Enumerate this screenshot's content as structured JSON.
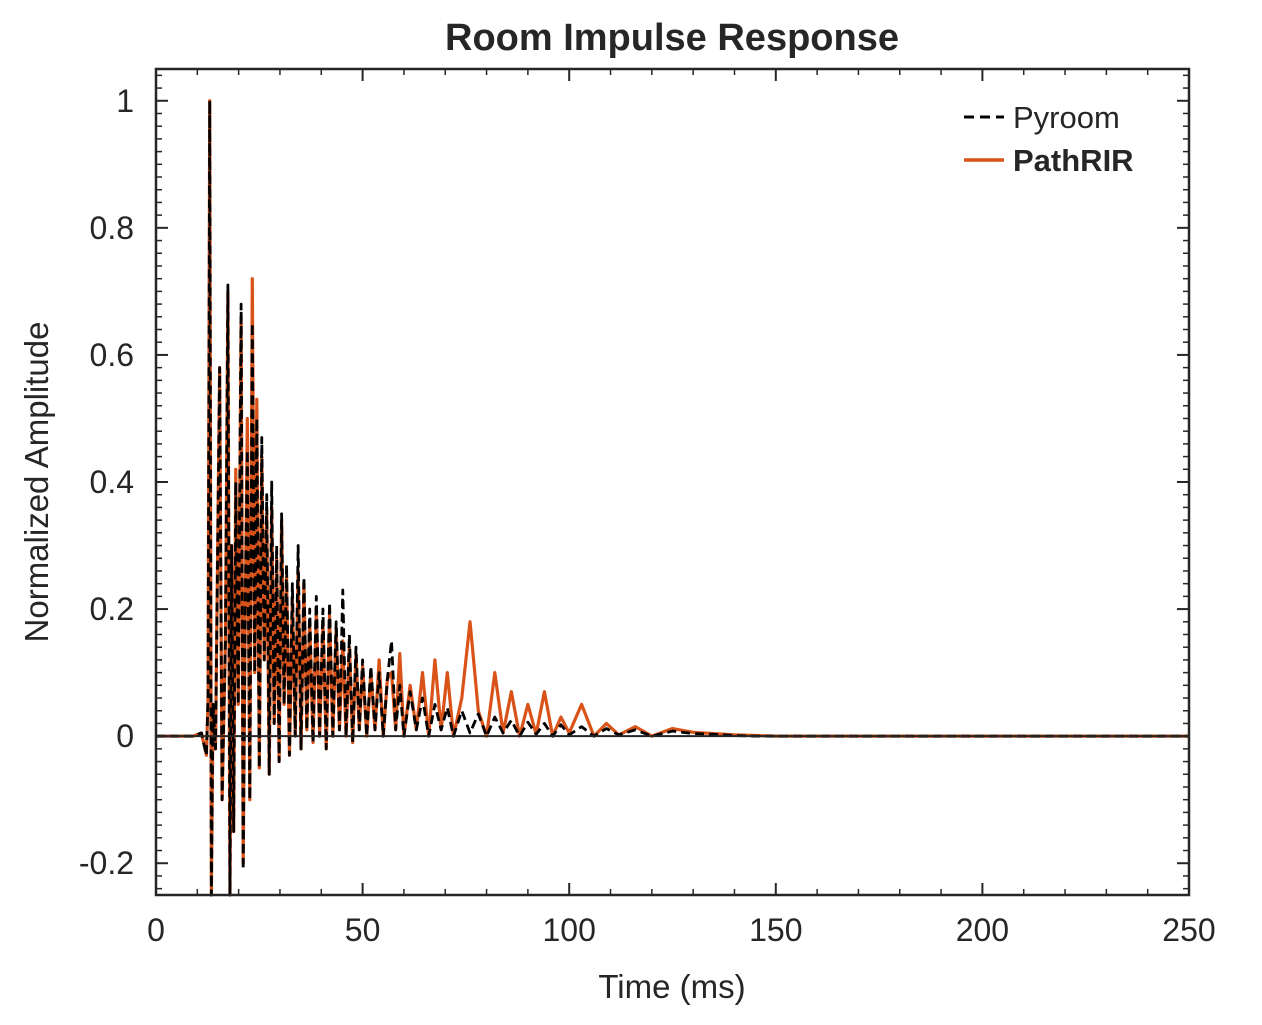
{
  "chart_data": {
    "type": "line",
    "title": "Room Impulse Response",
    "xlabel": "Time (ms)",
    "ylabel": "Normalized Amplitude",
    "xlim": [
      0,
      250
    ],
    "ylim": [
      -0.25,
      1.05
    ],
    "xticks": [
      0,
      50,
      100,
      150,
      200,
      250
    ],
    "xtick_labels": [
      "0",
      "50",
      "100",
      "150",
      "200",
      "250"
    ],
    "yticks": [
      -0.2,
      0,
      0.2,
      0.4,
      0.6,
      0.8,
      1
    ],
    "ytick_labels": [
      "-0.2",
      "0",
      "0.2",
      "0.4",
      "0.6",
      "0.8",
      "1"
    ],
    "grid": false,
    "legend_position": "top-right",
    "series": [
      {
        "name": "Pyroom",
        "color": "#000000",
        "style": "dashed",
        "x": [
          0,
          9,
          11,
          12.2,
          12.6,
          13.0,
          13.4,
          13.8,
          14.4,
          15.4,
          16.0,
          16.8,
          17.4,
          17.9,
          18.3,
          18.8,
          19.3,
          19.9,
          20.6,
          21.1,
          21.6,
          22.1,
          22.7,
          23.3,
          23.9,
          24.4,
          25.0,
          25.6,
          26.2,
          26.8,
          27.4,
          28.0,
          28.6,
          29.2,
          29.8,
          30.4,
          31.0,
          31.6,
          32.3,
          33.0,
          33.7,
          34.4,
          35.1,
          35.8,
          36.5,
          37.2,
          38.0,
          38.8,
          39.6,
          40.4,
          41.2,
          42.0,
          42.8,
          43.6,
          44.4,
          45.2,
          46.0,
          46.8,
          47.6,
          48.4,
          49.2,
          50.0,
          51.0,
          52.0,
          53.0,
          54.0,
          55.0,
          56.0,
          57.0,
          58.0,
          59.0,
          60.0,
          61.5,
          63.0,
          64.5,
          66.0,
          67.5,
          69.0,
          70.5,
          72.0,
          74.0,
          76.0,
          78.0,
          80.0,
          82.0,
          84.0,
          86.0,
          88.0,
          90.0,
          92.0,
          94.0,
          96.0,
          98.0,
          100.0,
          103.0,
          106.0,
          109.0,
          112.0,
          116.0,
          120.0,
          125.0,
          130.0,
          135.0,
          140.0,
          145.0,
          150.0,
          160.0,
          180.0,
          250.0
        ],
        "y": [
          0,
          0,
          0.005,
          -0.03,
          0.06,
          1.0,
          -0.25,
          0.05,
          -0.02,
          0.58,
          -0.1,
          0.15,
          0.71,
          -0.25,
          0.3,
          -0.15,
          0.4,
          0.05,
          0.68,
          -0.21,
          0.2,
          0.45,
          -0.1,
          0.65,
          0.1,
          0.5,
          -0.05,
          0.47,
          0.12,
          0.38,
          -0.06,
          0.4,
          0.02,
          0.3,
          -0.04,
          0.35,
          0.05,
          0.27,
          -0.03,
          0.24,
          0.0,
          0.3,
          -0.02,
          0.25,
          0.01,
          0.2,
          -0.01,
          0.22,
          0.0,
          0.2,
          -0.02,
          0.21,
          0.0,
          0.18,
          0.01,
          0.23,
          0.0,
          0.16,
          -0.01,
          0.14,
          0.01,
          0.12,
          0.0,
          0.11,
          0.01,
          0.1,
          0.0,
          0.09,
          0.15,
          0.01,
          0.08,
          0.0,
          0.07,
          0.01,
          0.06,
          0.0,
          0.05,
          0.01,
          0.045,
          0.0,
          0.04,
          0.005,
          0.035,
          0.0,
          0.03,
          0.005,
          0.025,
          0.0,
          0.022,
          0.003,
          0.02,
          0.0,
          0.018,
          0.002,
          0.015,
          0.0,
          0.012,
          0.002,
          0.01,
          0.0,
          0.008,
          0.004,
          0.003,
          0.001,
          0.0,
          0.0,
          0,
          0,
          0
        ]
      },
      {
        "name": "PathRIR",
        "color": "#D95319",
        "style": "solid",
        "x": [
          0,
          9,
          11,
          12.2,
          12.6,
          13.0,
          13.4,
          13.8,
          14.4,
          15.4,
          16.0,
          16.8,
          17.4,
          17.9,
          18.3,
          18.8,
          19.3,
          19.9,
          20.6,
          21.1,
          21.6,
          22.1,
          22.7,
          23.3,
          23.9,
          24.4,
          25.0,
          25.6,
          26.2,
          26.8,
          27.4,
          28.0,
          28.6,
          29.2,
          29.8,
          30.4,
          31.0,
          31.6,
          32.3,
          33.0,
          33.7,
          34.4,
          35.1,
          35.8,
          36.5,
          37.2,
          38.0,
          38.8,
          39.6,
          40.4,
          41.2,
          42.0,
          42.8,
          43.6,
          44.4,
          45.2,
          46.0,
          46.8,
          47.6,
          48.4,
          49.2,
          50.0,
          51.0,
          52.0,
          53.0,
          54.0,
          55.0,
          56.0,
          57.0,
          58.0,
          59.0,
          60.0,
          61.5,
          63.0,
          64.5,
          66.0,
          67.5,
          69.0,
          70.5,
          72.0,
          74.0,
          76.0,
          78.0,
          80.0,
          82.0,
          84.0,
          86.0,
          88.0,
          90.0,
          92.0,
          94.0,
          96.0,
          98.0,
          100.0,
          103.0,
          106.0,
          109.0,
          112.0,
          116.0,
          120.0,
          125.0,
          130.0,
          135.0,
          140.0,
          145.0,
          150.0,
          160.0,
          180.0,
          250.0
        ],
        "y": [
          0,
          0,
          0.005,
          -0.03,
          0.06,
          1.0,
          -0.25,
          0.05,
          -0.02,
          0.58,
          -0.1,
          0.15,
          0.7,
          -0.25,
          0.3,
          -0.15,
          0.42,
          0.05,
          0.66,
          -0.2,
          0.2,
          0.5,
          -0.1,
          0.72,
          0.1,
          0.53,
          -0.05,
          0.44,
          0.12,
          0.35,
          -0.06,
          0.36,
          0.02,
          0.28,
          -0.04,
          0.34,
          0.05,
          0.25,
          -0.03,
          0.22,
          0.0,
          0.26,
          -0.02,
          0.24,
          0.01,
          0.18,
          -0.01,
          0.2,
          0.0,
          0.18,
          -0.02,
          0.19,
          0.0,
          0.17,
          0.01,
          0.15,
          0.0,
          0.14,
          -0.01,
          0.13,
          0.01,
          0.11,
          0.0,
          0.1,
          0.01,
          0.12,
          0.0,
          0.09,
          0.1,
          0.01,
          0.13,
          0.0,
          0.08,
          0.01,
          0.1,
          0.0,
          0.12,
          0.01,
          0.1,
          0.0,
          0.06,
          0.18,
          0.04,
          0.0,
          0.1,
          0.005,
          0.07,
          0.0,
          0.05,
          0.003,
          0.07,
          0.0,
          0.03,
          0.005,
          0.05,
          0.0,
          0.02,
          0.002,
          0.015,
          0.0,
          0.012,
          0.006,
          0.004,
          0.002,
          0.001,
          0.0,
          0,
          0,
          0
        ]
      }
    ]
  }
}
